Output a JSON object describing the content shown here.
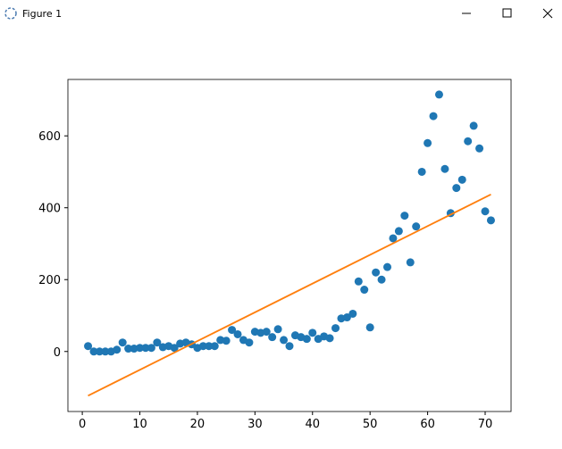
{
  "window_title": "Figure 1",
  "chart_data": {
    "type": "scatter",
    "x": [
      1,
      2,
      3,
      4,
      5,
      6,
      7,
      8,
      9,
      10,
      11,
      12,
      13,
      14,
      15,
      16,
      17,
      18,
      19,
      20,
      21,
      22,
      23,
      24,
      25,
      26,
      27,
      28,
      29,
      30,
      31,
      32,
      33,
      34,
      35,
      36,
      37,
      38,
      39,
      40,
      41,
      42,
      43,
      44,
      45,
      46,
      47,
      48,
      49,
      50,
      51,
      52,
      53,
      54,
      55,
      56,
      57,
      58,
      59,
      60,
      61,
      62,
      63,
      64,
      65,
      66,
      67,
      68,
      69,
      70,
      71
    ],
    "series": [
      {
        "color": "#1f77b4",
        "values": [
          15,
          0,
          0,
          0,
          0,
          5,
          25,
          8,
          8,
          10,
          10,
          10,
          25,
          12,
          15,
          10,
          22,
          25,
          20,
          10,
          15,
          15,
          15,
          32,
          30,
          60,
          48,
          32,
          25,
          55,
          52,
          55,
          40,
          62,
          32,
          15,
          45,
          40,
          35,
          52,
          35,
          42,
          37,
          65,
          92,
          95,
          105,
          195,
          172,
          67,
          220,
          200,
          235,
          315,
          335,
          378,
          248,
          348,
          500,
          580,
          655,
          715,
          508,
          385,
          455,
          478,
          585,
          628,
          565,
          390,
          365
        ]
      },
      {
        "color": "#ff7f0e",
        "line": true,
        "x": [
          1,
          71
        ],
        "values": [
          -123,
          437
        ]
      }
    ],
    "xlim": [
      -2.5,
      74.5
    ],
    "xticks": [
      0,
      10,
      20,
      30,
      40,
      50,
      60,
      70
    ],
    "ylim": [
      -167,
      757
    ],
    "yticks": [
      0,
      200,
      400,
      600
    ]
  }
}
